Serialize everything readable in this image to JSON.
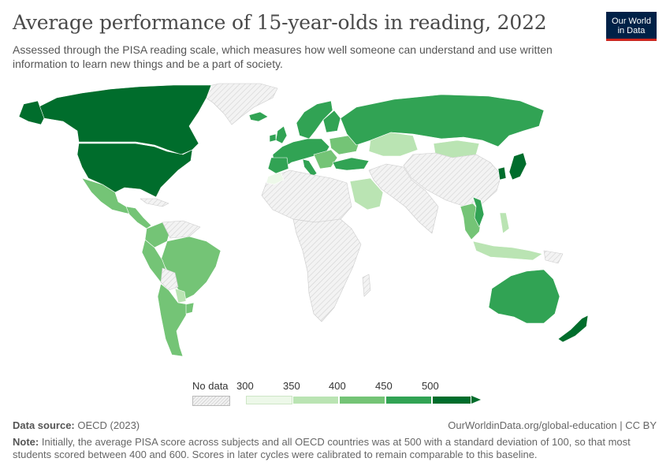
{
  "header": {
    "title": "Average performance of 15-year-olds in reading, 2022",
    "subtitle": "Assessed through the PISA reading scale, which measures how well someone can understand and use written information to learn new things and be a part of society."
  },
  "logo": {
    "line1": "Our World",
    "line2": "in Data",
    "bg_color": "#002147",
    "accent_color": "#ce261e"
  },
  "legend": {
    "no_data_label": "No data",
    "ticks": [
      "300",
      "350",
      "400",
      "450",
      "500"
    ],
    "bins": [
      {
        "from": 300,
        "to": 350,
        "color": "#edf8e9"
      },
      {
        "from": 350,
        "to": 400,
        "color": "#bae4b3"
      },
      {
        "from": 400,
        "to": 450,
        "color": "#74c476"
      },
      {
        "from": 450,
        "to": 500,
        "color": "#31a354"
      },
      {
        "from": 500,
        "to": 550,
        "color": "#006d2c"
      }
    ]
  },
  "map_colors": {
    "very_high": "#006d2c",
    "high": "#31a354",
    "mid": "#74c476",
    "low": "#bae4b3",
    "very_low": "#edf8e9",
    "no_data": "#e8e8e8"
  },
  "footer": {
    "source_label": "Data source:",
    "source_value": "OECD (2023)",
    "credit": "OurWorldinData.org/global-education | CC BY",
    "note_label": "Note:",
    "note_text": "Initially, the average PISA score across subjects and all OECD countries was at 500 with a standard deviation of 100, so that most students scored between 400 and 600. Scores in later cycles were calibrated to remain comparable to this baseline."
  }
}
